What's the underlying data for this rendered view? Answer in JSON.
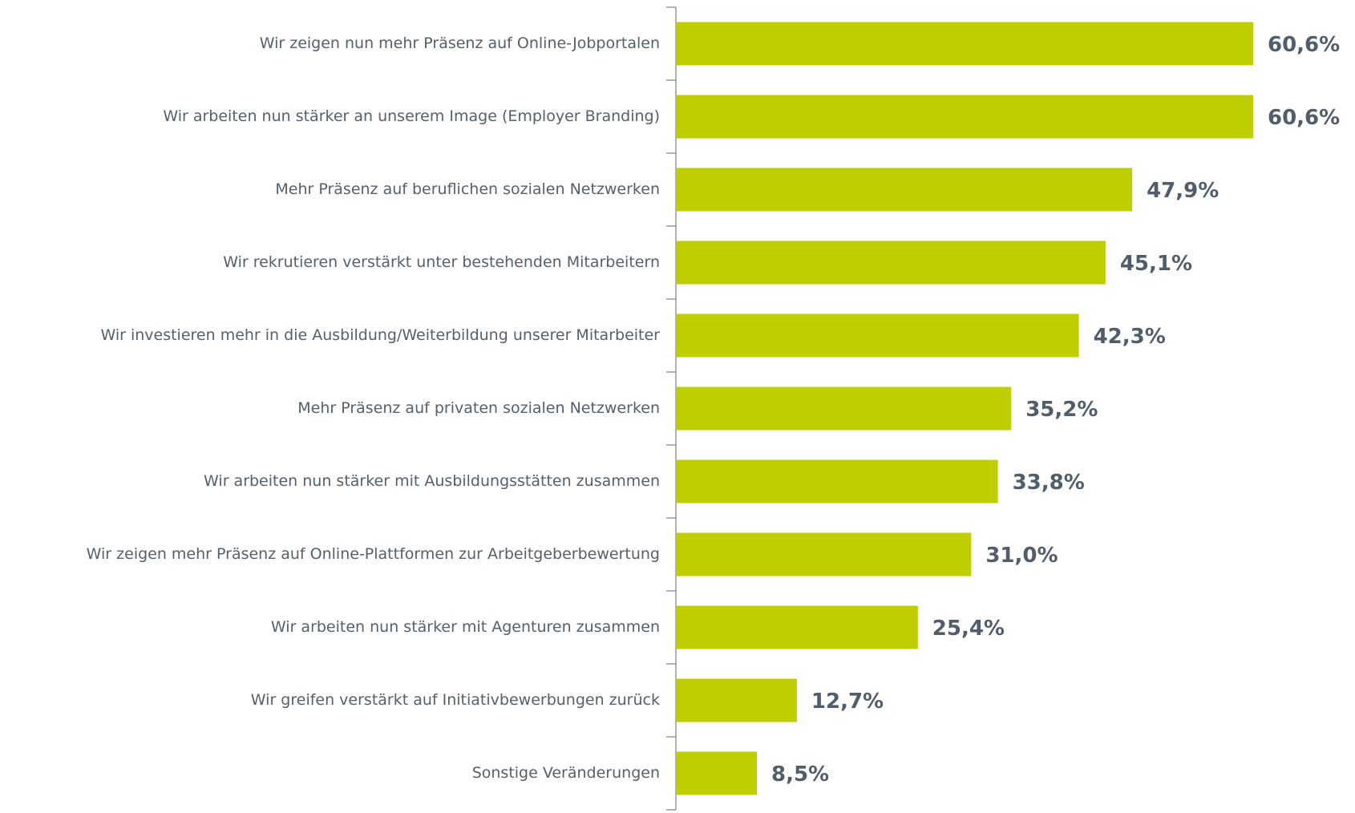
{
  "chart_data": {
    "type": "bar",
    "orientation": "horizontal",
    "categories": [
      "Wir zeigen nun mehr Präsenz auf Online-Jobportalen",
      "Wir arbeiten nun stärker an unserem Image (Employer Branding)",
      "Mehr Präsenz auf beruflichen sozialen Netzwerken",
      "Wir rekrutieren verstärkt unter bestehenden Mitarbeitern",
      "Wir investieren mehr in die Ausbildung/Weiterbildung unserer Mitarbeiter",
      "Mehr Präsenz auf privaten sozialen Netzwerken",
      "Wir arbeiten nun stärker mit Ausbildungsstätten zusammen",
      "Wir zeigen mehr Präsenz auf Online-Plattformen zur Arbeitgeberbewertung",
      "Wir arbeiten nun stärker mit Agenturen zusammen",
      "Wir greifen verstärkt auf Initiativbewerbungen zurück",
      "Sonstige Veränderungen"
    ],
    "values": [
      60.6,
      60.6,
      47.9,
      45.1,
      42.3,
      35.2,
      33.8,
      31.0,
      25.4,
      12.7,
      8.5
    ],
    "value_labels": [
      "60,6%",
      "60,6%",
      "47,9%",
      "45,1%",
      "42,3%",
      "35,2%",
      "33,8%",
      "31,0%",
      "25,4%",
      "12,7%",
      "8,5%"
    ],
    "color": "#bfce00"
  }
}
